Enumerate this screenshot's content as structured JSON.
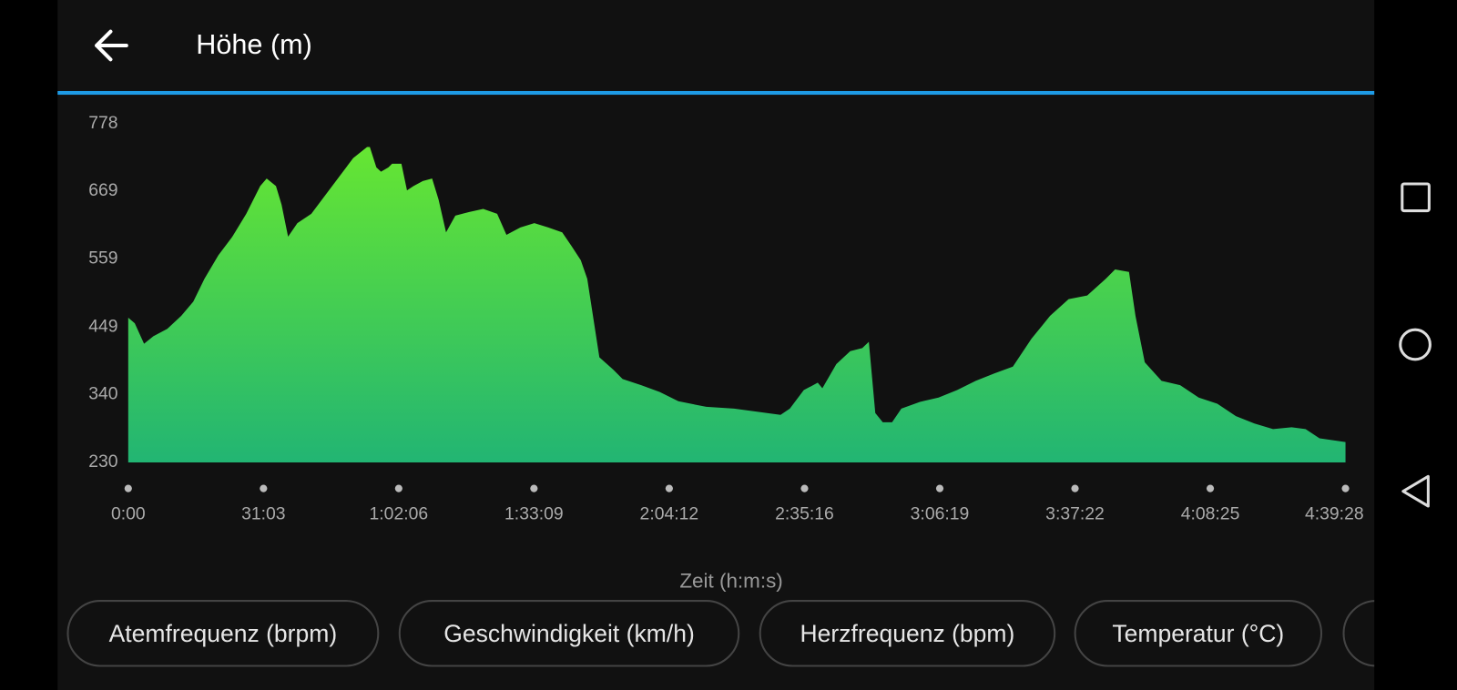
{
  "chart_data": {
    "type": "area",
    "title": "Höhe (m)",
    "xlabel": "Zeit (h:m:s)",
    "gradient": [
      "#66e632",
      "#22b573"
    ],
    "x": [
      0,
      90,
      218,
      346,
      538,
      730,
      896,
      1050,
      1242,
      1434,
      1626,
      1818,
      1907,
      2035,
      2112,
      2202,
      2330,
      2522,
      2714,
      2906,
      3098,
      3290,
      3328,
      3418,
      3482,
      3584,
      3635,
      3763,
      3840,
      3930,
      4058,
      4186,
      4275,
      4378,
      4506,
      4698,
      4890,
      5082,
      5210,
      5402,
      5594,
      5786,
      5978,
      6106,
      6234,
      6323,
      6490,
      6682,
      6810,
      7066,
      7322,
      7578,
      7962,
      8346,
      8730,
      8986,
      9114,
      9306,
      9498,
      9562,
      9754,
      9946,
      10112,
      10202,
      10291,
      10394,
      10522,
      10650,
      10906,
      11162,
      11418,
      11674,
      11930,
      12186,
      12442,
      12698,
      12954,
      13210,
      13466,
      13594,
      13786,
      13875,
      14003,
      14234,
      14490,
      14746,
      15002,
      15258,
      15514,
      15770,
      16026,
      16218,
      16410,
      16768
    ],
    "values": [
      464,
      455,
      422,
      434,
      446,
      467,
      490,
      527,
      565,
      595,
      632,
      677,
      689,
      677,
      647,
      595,
      617,
      632,
      662,
      692,
      722,
      740,
      740,
      707,
      700,
      707,
      713,
      713,
      670,
      677,
      685,
      689,
      655,
      602,
      629,
      635,
      640,
      632,
      598,
      610,
      617,
      610,
      602,
      580,
      557,
      527,
      400,
      380,
      365,
      355,
      344,
      329,
      320,
      317,
      311,
      307,
      317,
      347,
      359,
      350,
      389,
      410,
      415,
      425,
      310,
      295,
      295,
      317,
      328,
      335,
      347,
      362,
      374,
      385,
      430,
      467,
      494,
      500,
      527,
      542,
      538,
      467,
      392,
      362,
      355,
      335,
      325,
      305,
      293,
      284,
      287,
      284,
      269,
      263
    ],
    "xlim": [
      0,
      16768
    ],
    "xticks": [
      {
        "value": 0,
        "label": "0:00"
      },
      {
        "value": 1863,
        "label": "31:03"
      },
      {
        "value": 3726,
        "label": "1:02:06"
      },
      {
        "value": 5589,
        "label": "1:33:09"
      },
      {
        "value": 7452,
        "label": "2:04:12"
      },
      {
        "value": 9316,
        "label": "2:35:16"
      },
      {
        "value": 11179,
        "label": "3:06:19"
      },
      {
        "value": 13042,
        "label": "3:37:22"
      },
      {
        "value": 14905,
        "label": "4:08:25"
      },
      {
        "value": 16768,
        "label": "4:39:28"
      }
    ],
    "ylim": [
      230,
      778
    ],
    "yticks": [
      230,
      340,
      449,
      559,
      669,
      778
    ]
  },
  "buttons": [
    "Atemfrequenz (brpm)",
    "Geschwindigkeit (km/h)",
    "Herzfrequenz (bpm)",
    "Temperatur (°C)"
  ]
}
